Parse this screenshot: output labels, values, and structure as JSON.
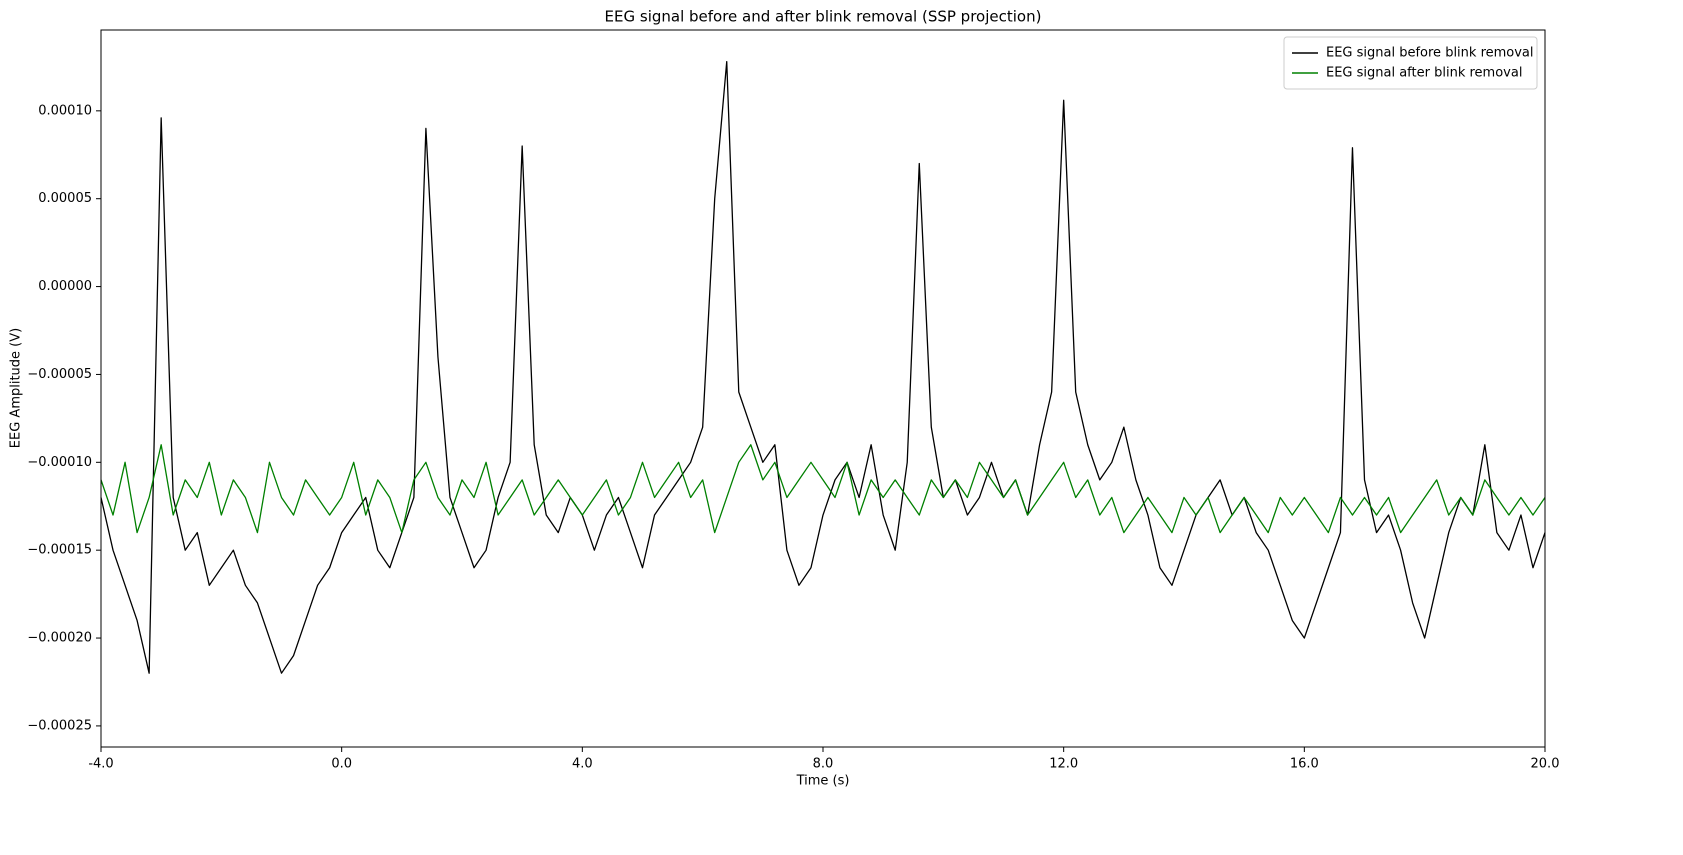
{
  "chart_data": {
    "type": "line",
    "title": "EEG signal before and after blink removal (SSP projection)",
    "xlabel": "Time (s)",
    "ylabel": "EEG Amplitude (V)",
    "x": [
      -4,
      -3.8,
      -3.6,
      -3.4,
      -3.2,
      -3,
      -2.8,
      -2.6,
      -2.4,
      -2.2,
      -2,
      -1.8,
      -1.6,
      -1.4,
      -1.2,
      -1,
      -0.8,
      -0.6,
      -0.4,
      -0.2,
      0,
      0.2,
      0.4,
      0.6,
      0.8,
      1,
      1.2,
      1.4,
      1.6,
      1.8,
      2,
      2.2,
      2.4,
      2.6,
      2.8,
      3,
      3.2,
      3.4,
      3.6,
      3.8,
      4,
      4.2,
      4.4,
      4.6,
      4.8,
      5,
      5.2,
      5.4,
      5.6,
      5.8,
      6,
      6.2,
      6.4,
      6.6,
      6.8,
      7,
      7.2,
      7.4,
      7.6,
      7.8,
      8,
      8.2,
      8.4,
      8.6,
      8.8,
      9,
      9.2,
      9.4,
      9.6,
      9.8,
      10,
      10.2,
      10.4,
      10.6,
      10.8,
      11,
      11.2,
      11.4,
      11.6,
      11.8,
      12,
      12.2,
      12.4,
      12.6,
      12.8,
      13,
      13.2,
      13.4,
      13.6,
      13.8,
      14,
      14.2,
      14.4,
      14.6,
      14.8,
      15,
      15.2,
      15.4,
      15.6,
      15.8,
      16,
      16.2,
      16.4,
      16.6,
      16.8,
      17,
      17.2,
      17.4,
      17.6,
      17.8,
      18,
      18.2,
      18.4,
      18.6,
      18.8,
      19,
      19.2,
      19.4,
      19.6,
      19.8,
      20
    ],
    "series": [
      {
        "name": "EEG signal before blink removal",
        "color": "#000000",
        "values": [
          -0.00012,
          -0.00015,
          -0.00017,
          -0.00019,
          -0.00022,
          9.6e-05,
          -0.00012,
          -0.00015,
          -0.00014,
          -0.00017,
          -0.00016,
          -0.00015,
          -0.00017,
          -0.00018,
          -0.0002,
          -0.00022,
          -0.00021,
          -0.00019,
          -0.00017,
          -0.00016,
          -0.00014,
          -0.00013,
          -0.00012,
          -0.00015,
          -0.00016,
          -0.00014,
          -0.00012,
          9e-05,
          -4e-05,
          -0.00012,
          -0.00014,
          -0.00016,
          -0.00015,
          -0.00012,
          -0.0001,
          8e-05,
          -9e-05,
          -0.00013,
          -0.00014,
          -0.00012,
          -0.00013,
          -0.00015,
          -0.00013,
          -0.00012,
          -0.00014,
          -0.00016,
          -0.00013,
          -0.00012,
          -0.00011,
          -0.0001,
          -8e-05,
          5e-05,
          0.000128,
          -6e-05,
          -8e-05,
          -0.0001,
          -9e-05,
          -0.00015,
          -0.00017,
          -0.00016,
          -0.00013,
          -0.00011,
          -0.0001,
          -0.00012,
          -9e-05,
          -0.00013,
          -0.00015,
          -0.0001,
          7e-05,
          -8e-05,
          -0.00012,
          -0.00011,
          -0.00013,
          -0.00012,
          -0.0001,
          -0.00012,
          -0.00011,
          -0.00013,
          -9e-05,
          -6e-05,
          0.000106,
          -6e-05,
          -9e-05,
          -0.00011,
          -0.0001,
          -8e-05,
          -0.00011,
          -0.00013,
          -0.00016,
          -0.00017,
          -0.00015,
          -0.00013,
          -0.00012,
          -0.00011,
          -0.00013,
          -0.00012,
          -0.00014,
          -0.00015,
          -0.00017,
          -0.00019,
          -0.0002,
          -0.00018,
          -0.00016,
          -0.00014,
          7.9e-05,
          -0.00011,
          -0.00014,
          -0.00013,
          -0.00015,
          -0.00018,
          -0.0002,
          -0.00017,
          -0.00014,
          -0.00012,
          -0.00013,
          -9e-05,
          -0.00014,
          -0.00015,
          -0.00013,
          -0.00016,
          -0.00014
        ]
      },
      {
        "name": "EEG signal after blink removal",
        "color": "#008000",
        "values": [
          -0.00011,
          -0.00013,
          -0.0001,
          -0.00014,
          -0.00012,
          -9e-05,
          -0.00013,
          -0.00011,
          -0.00012,
          -0.0001,
          -0.00013,
          -0.00011,
          -0.00012,
          -0.00014,
          -0.0001,
          -0.00012,
          -0.00013,
          -0.00011,
          -0.00012,
          -0.00013,
          -0.00012,
          -0.0001,
          -0.00013,
          -0.00011,
          -0.00012,
          -0.00014,
          -0.00011,
          -0.0001,
          -0.00012,
          -0.00013,
          -0.00011,
          -0.00012,
          -0.0001,
          -0.00013,
          -0.00012,
          -0.00011,
          -0.00013,
          -0.00012,
          -0.00011,
          -0.00012,
          -0.00013,
          -0.00012,
          -0.00011,
          -0.00013,
          -0.00012,
          -0.0001,
          -0.00012,
          -0.00011,
          -0.0001,
          -0.00012,
          -0.00011,
          -0.00014,
          -0.00012,
          -0.0001,
          -9e-05,
          -0.00011,
          -0.0001,
          -0.00012,
          -0.00011,
          -0.0001,
          -0.00011,
          -0.00012,
          -0.0001,
          -0.00013,
          -0.00011,
          -0.00012,
          -0.00011,
          -0.00012,
          -0.00013,
          -0.00011,
          -0.00012,
          -0.00011,
          -0.00012,
          -0.0001,
          -0.00011,
          -0.00012,
          -0.00011,
          -0.00013,
          -0.00012,
          -0.00011,
          -0.0001,
          -0.00012,
          -0.00011,
          -0.00013,
          -0.00012,
          -0.00014,
          -0.00013,
          -0.00012,
          -0.00013,
          -0.00014,
          -0.00012,
          -0.00013,
          -0.00012,
          -0.00014,
          -0.00013,
          -0.00012,
          -0.00013,
          -0.00014,
          -0.00012,
          -0.00013,
          -0.00012,
          -0.00013,
          -0.00014,
          -0.00012,
          -0.00013,
          -0.00012,
          -0.00013,
          -0.00012,
          -0.00014,
          -0.00013,
          -0.00012,
          -0.00011,
          -0.00013,
          -0.00012,
          -0.00013,
          -0.00011,
          -0.00012,
          -0.00013,
          -0.00012,
          -0.00013,
          -0.00012
        ]
      }
    ],
    "xlim": [
      -4,
      20
    ],
    "xticks": [
      {
        "value": -4,
        "label": "-4.0"
      },
      {
        "value": 0,
        "label": "0.0"
      },
      {
        "value": 4,
        "label": "4.0"
      },
      {
        "value": 8,
        "label": "8.0"
      },
      {
        "value": 12,
        "label": "12.0"
      },
      {
        "value": 16,
        "label": "16.0"
      },
      {
        "value": 20,
        "label": "20.0"
      }
    ],
    "ylim": [
      -0.000262,
      0.000146
    ],
    "yticks": [
      {
        "value": 0.0001,
        "label": "0.00010"
      },
      {
        "value": 5e-05,
        "label": "0.00005"
      },
      {
        "value": 0,
        "label": "0.00000"
      },
      {
        "value": -5e-05,
        "label": "−0.00005"
      },
      {
        "value": -0.0001,
        "label": "−0.00010"
      },
      {
        "value": -0.00015,
        "label": "−0.00015"
      },
      {
        "value": -0.0002,
        "label": "−0.00020"
      },
      {
        "value": -0.00025,
        "label": "−0.00025"
      }
    ],
    "grid": false,
    "legend": "upper right"
  }
}
